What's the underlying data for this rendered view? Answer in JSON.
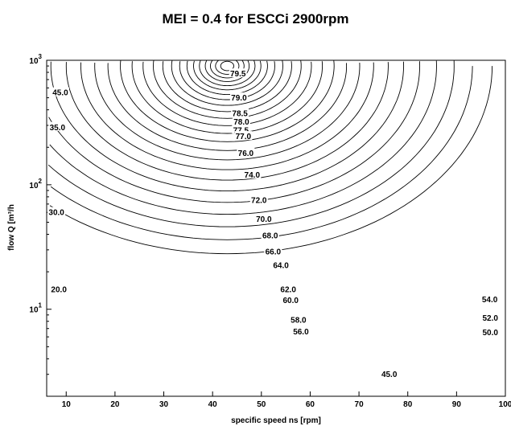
{
  "chart_data": {
    "type": "line",
    "subtype": "contour",
    "title": "MEI = 0.4 for ESCCi 2900rpm",
    "xlabel": "specific speed ns [rpm]",
    "ylabel": "flow Q [m³/h",
    "xlim": [
      6,
      100
    ],
    "ylim": [
      2,
      1000
    ],
    "yscale": "log",
    "grid": false,
    "x_ticks": [
      "10",
      "20",
      "30",
      "40",
      "50",
      "60",
      "70",
      "80",
      "90",
      "100"
    ],
    "y_ticks": [
      {
        "base": "10",
        "exp": "1"
      },
      {
        "base": "10",
        "exp": "2"
      },
      {
        "base": "10",
        "exp": "3"
      }
    ],
    "contour_labels": [
      {
        "text": "79.5",
        "x": 45.2,
        "y": 780
      },
      {
        "text": "79.0",
        "x": 45.4,
        "y": 500
      },
      {
        "text": "78.5",
        "x": 45.6,
        "y": 375
      },
      {
        "text": "78.0",
        "x": 45.9,
        "y": 320
      },
      {
        "text": "77.5",
        "x": 45.8,
        "y": 275
      },
      {
        "text": "77.0",
        "x": 46.3,
        "y": 245
      },
      {
        "text": "76.0",
        "x": 46.8,
        "y": 180
      },
      {
        "text": "74.0",
        "x": 48.1,
        "y": 120
      },
      {
        "text": "72.0",
        "x": 49.5,
        "y": 75
      },
      {
        "text": "70.0",
        "x": 50.5,
        "y": 53
      },
      {
        "text": "68.0",
        "x": 51.8,
        "y": 39
      },
      {
        "text": "66.0",
        "x": 52.4,
        "y": 29
      },
      {
        "text": "64.0",
        "x": 54.0,
        "y": 22.5
      },
      {
        "text": "62.0",
        "x": 55.5,
        "y": 14.5
      },
      {
        "text": "60.0",
        "x": 56.0,
        "y": 11.8
      },
      {
        "text": "58.0",
        "x": 57.6,
        "y": 8.2
      },
      {
        "text": "56.0",
        "x": 58.1,
        "y": 6.6
      },
      {
        "text": "54.0",
        "x": 96.8,
        "y": 12.0
      },
      {
        "text": "52.0",
        "x": 96.9,
        "y": 8.5
      },
      {
        "text": "50.0",
        "x": 96.9,
        "y": 6.5
      },
      {
        "text": "45.0",
        "x": 76.2,
        "y": 3.0
      },
      {
        "text": "45.0",
        "x": 8.8,
        "y": 550
      },
      {
        "text": "35.0",
        "x": 8.2,
        "y": 290
      },
      {
        "text": "30.0",
        "x": 8.0,
        "y": 60
      },
      {
        "text": "20.0",
        "x": 8.5,
        "y": 14.5
      }
    ]
  }
}
